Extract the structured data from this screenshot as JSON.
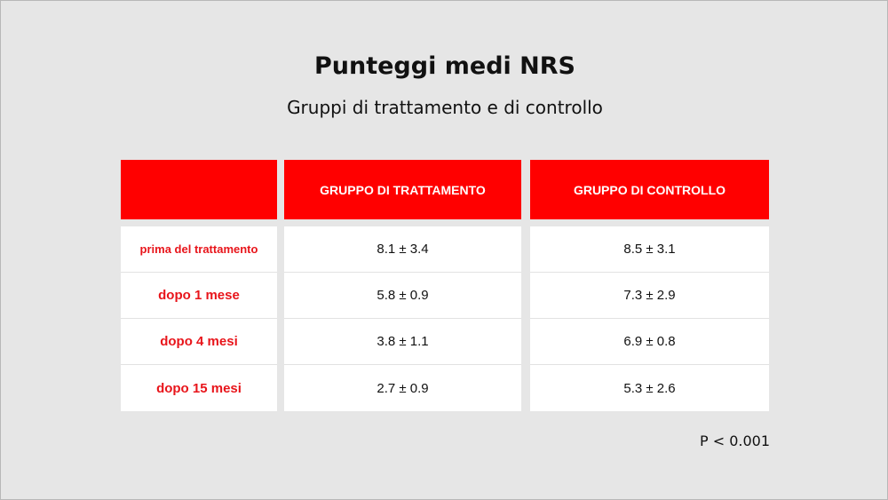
{
  "title": "Punteggi medi NRS",
  "subtitle": "Gruppi di trattamento e di controllo",
  "table": {
    "headers": [
      "",
      "GRUPPO DI TRATTAMENTO",
      "GRUPPO DI CONTROLLO"
    ],
    "rows": [
      {
        "label": "prima del trattamento",
        "treatment": "8.1 ± 3.4",
        "control": "8.5 ± 3.1"
      },
      {
        "label": "dopo 1 mese",
        "treatment": "5.8 ± 0.9",
        "control": "7.3 ± 2.9"
      },
      {
        "label": "dopo 4 mesi",
        "treatment": "3.8 ± 1.1",
        "control": "6.9 ± 0.8"
      },
      {
        "label": "dopo 15 mesi",
        "treatment": "2.7 ± 0.9",
        "control": "5.3 ± 2.6"
      }
    ]
  },
  "footnote": "P < 0.001",
  "colors": {
    "header_bg": "#ff0000",
    "label_text": "#e8151b",
    "slide_bg": "#e6e6e6"
  }
}
